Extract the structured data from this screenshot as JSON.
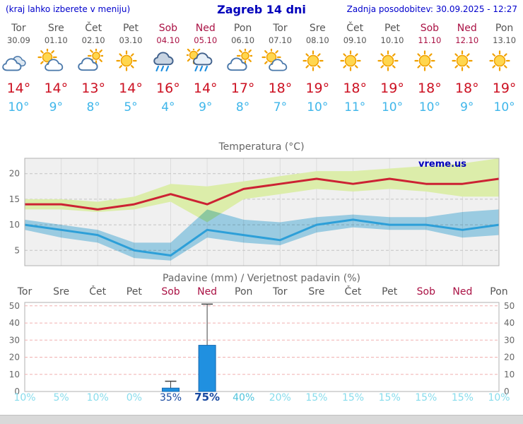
{
  "colors": {
    "link_blue": "#0000cc",
    "title_blue": "#0000bb",
    "weekday": "#555555",
    "weekend": "#aa1144",
    "temp_max": "#cc1122",
    "temp_min": "#3fb6ea",
    "chart_title": "#666666",
    "plot_bg": "#f0f0f0",
    "plot_border": "#b0b0b0",
    "grid_gray": "#c4c4c4",
    "grid_vertical": "#dcdcdc",
    "grid_pink": "#f0b0b0",
    "band_max": "#dcedaa",
    "band_min": "#a4d8ef",
    "line_max": "#cc2233",
    "line_min": "#2d9fd8",
    "bar_blue": "#2090e0",
    "bar_border": "#1668b0",
    "whisker": "#444444",
    "prob_low": "#87dcec",
    "prob_mid": "#4fc3dc",
    "prob_high": "#17489f",
    "watermark": "#0000bb",
    "footer_bg": "#d9d9d9"
  },
  "header": {
    "left_note": "(kraj lahko izberete v meniju)",
    "title": "Zagreb 14 dni",
    "updated": "Zadnja posodobitev: 30.09.2025 - 12:27"
  },
  "forecast": {
    "days": [
      {
        "name": "Tor",
        "date": "30.09",
        "weekend": false,
        "icon": "cloudy",
        "tmax": "14°",
        "tmin": "10°"
      },
      {
        "name": "Sre",
        "date": "01.10",
        "weekend": false,
        "icon": "partly-cloudy",
        "tmax": "14°",
        "tmin": "9°"
      },
      {
        "name": "Čet",
        "date": "02.10",
        "weekend": false,
        "icon": "mostly-cloudy",
        "tmax": "13°",
        "tmin": "8°"
      },
      {
        "name": "Pet",
        "date": "03.10",
        "weekend": false,
        "icon": "sunny",
        "tmax": "14°",
        "tmin": "5°"
      },
      {
        "name": "Sob",
        "date": "04.10",
        "weekend": true,
        "icon": "rain",
        "tmax": "16°",
        "tmin": "4°"
      },
      {
        "name": "Ned",
        "date": "05.10",
        "weekend": true,
        "icon": "rain-showers",
        "tmax": "14°",
        "tmin": "9°"
      },
      {
        "name": "Pon",
        "date": "06.10",
        "weekend": false,
        "icon": "mostly-cloudy",
        "tmax": "17°",
        "tmin": "8°"
      },
      {
        "name": "Tor",
        "date": "07.10",
        "weekend": false,
        "icon": "partly-cloudy",
        "tmax": "18°",
        "tmin": "7°"
      },
      {
        "name": "Sre",
        "date": "08.10",
        "weekend": false,
        "icon": "sunny",
        "tmax": "19°",
        "tmin": "10°"
      },
      {
        "name": "Čet",
        "date": "09.10",
        "weekend": false,
        "icon": "sunny",
        "tmax": "18°",
        "tmin": "11°"
      },
      {
        "name": "Pet",
        "date": "10.10",
        "weekend": false,
        "icon": "sunny",
        "tmax": "19°",
        "tmin": "10°"
      },
      {
        "name": "Sob",
        "date": "11.10",
        "weekend": true,
        "icon": "sunny",
        "tmax": "18°",
        "tmin": "10°"
      },
      {
        "name": "Ned",
        "date": "12.10",
        "weekend": true,
        "icon": "sunny",
        "tmax": "18°",
        "tmin": "9°"
      },
      {
        "name": "Pon",
        "date": "13.10",
        "weekend": false,
        "icon": "sunny",
        "tmax": "19°",
        "tmin": "10°"
      }
    ]
  },
  "chart_data": [
    {
      "type": "line",
      "title": "Temperatura (°C)",
      "watermark": "vreme.us",
      "categories": [
        "Tor 30.09",
        "Sre 01.10",
        "Čet 02.10",
        "Pet 03.10",
        "Sob 04.10",
        "Ned 05.10",
        "Pon 06.10",
        "Tor 07.10",
        "Sre 08.10",
        "Čet 09.10",
        "Pet 10.10",
        "Sob 11.10",
        "Ned 12.10",
        "Pon 13.10"
      ],
      "yticks": [
        5,
        10,
        15,
        20
      ],
      "ylim": [
        2,
        23
      ],
      "grid": true,
      "series": [
        {
          "name": "max_temp",
          "values": [
            14,
            14,
            13,
            14,
            16,
            14,
            17,
            18,
            19,
            18,
            19,
            18,
            18,
            19
          ]
        },
        {
          "name": "max_temp_range_high",
          "values": [
            15,
            15,
            14.5,
            15.5,
            18,
            17.5,
            18.5,
            19.5,
            20.5,
            20.5,
            21,
            21.5,
            22,
            23
          ]
        },
        {
          "name": "max_temp_range_low",
          "values": [
            13,
            13,
            12.5,
            13,
            14.5,
            10.5,
            15,
            16,
            17,
            16.5,
            17,
            16.5,
            15.5,
            15.5
          ]
        },
        {
          "name": "min_temp",
          "values": [
            10,
            9,
            8,
            5,
            4,
            9,
            8,
            7,
            10,
            11,
            10,
            10,
            9,
            10
          ]
        },
        {
          "name": "min_temp_range_high",
          "values": [
            11,
            10,
            9,
            6.5,
            6.5,
            13,
            11,
            10.5,
            11.5,
            12,
            11.5,
            11.5,
            12.5,
            13
          ]
        },
        {
          "name": "min_temp_range_low",
          "values": [
            9,
            7.5,
            6.5,
            3.5,
            3,
            7.5,
            6.5,
            6,
            8.5,
            9.5,
            9,
            9,
            7.5,
            8
          ]
        }
      ]
    },
    {
      "type": "bar",
      "title": "Padavine (mm) / Verjetnost padavin (%)",
      "categories": [
        "Tor",
        "Sre",
        "Čet",
        "Pet",
        "Sob",
        "Ned",
        "Pon",
        "Tor",
        "Sre",
        "Čet",
        "Pet",
        "Sob",
        "Ned",
        "Pon"
      ],
      "weekend": [
        false,
        false,
        false,
        false,
        true,
        true,
        false,
        false,
        false,
        false,
        false,
        true,
        true,
        false
      ],
      "values": [
        0,
        0,
        0,
        0,
        2,
        27,
        0,
        0,
        0,
        0,
        0,
        0,
        0,
        0
      ],
      "range_high": [
        0,
        0,
        0,
        0,
        6,
        51,
        0,
        0,
        0,
        0,
        0,
        0,
        0,
        0
      ],
      "yticks": [
        0,
        10,
        20,
        30,
        40,
        50
      ],
      "ylim": [
        0,
        52
      ],
      "probabilities": [
        {
          "label": "10%",
          "emphasis": "low"
        },
        {
          "label": "5%",
          "emphasis": "low"
        },
        {
          "label": "10%",
          "emphasis": "low"
        },
        {
          "label": "0%",
          "emphasis": "low"
        },
        {
          "label": "35%",
          "emphasis": "high"
        },
        {
          "label": "75%",
          "emphasis": "high-bold"
        },
        {
          "label": "40%",
          "emphasis": "mid"
        },
        {
          "label": "20%",
          "emphasis": "low"
        },
        {
          "label": "15%",
          "emphasis": "low"
        },
        {
          "label": "15%",
          "emphasis": "low"
        },
        {
          "label": "15%",
          "emphasis": "low"
        },
        {
          "label": "15%",
          "emphasis": "low"
        },
        {
          "label": "15%",
          "emphasis": "low"
        },
        {
          "label": "10%",
          "emphasis": "low"
        }
      ]
    }
  ]
}
